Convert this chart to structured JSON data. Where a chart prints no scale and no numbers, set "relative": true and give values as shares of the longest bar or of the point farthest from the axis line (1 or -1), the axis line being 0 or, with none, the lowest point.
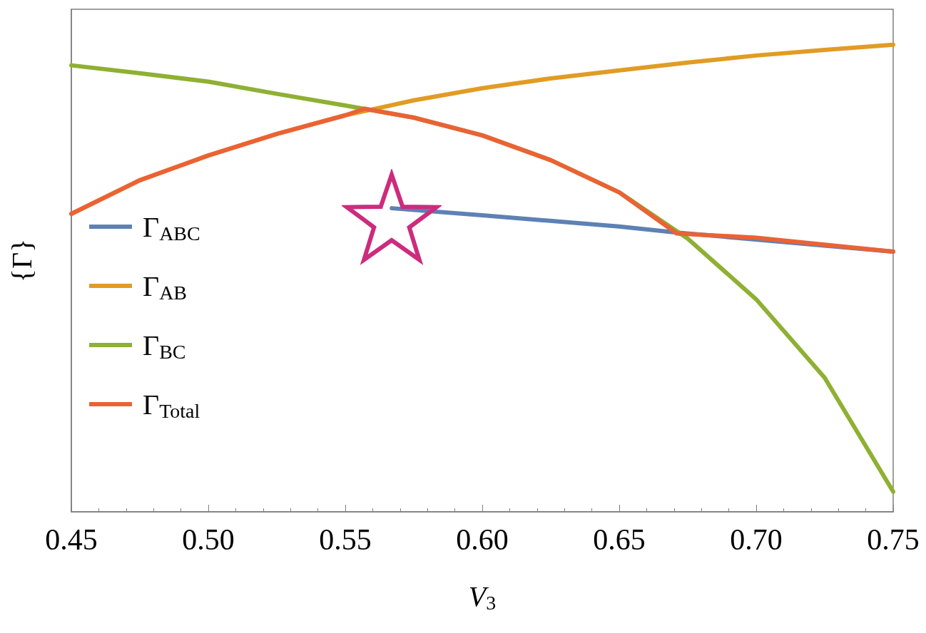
{
  "chart_data": {
    "type": "line",
    "xlabel": "V$_{3}$",
    "ylabel": "{Γ}",
    "relative": true,
    "xlim": [
      0.45,
      0.75
    ],
    "xticks": [
      {
        "value": 0.45,
        "label": "0.45"
      },
      {
        "value": 0.5,
        "label": "0.50"
      },
      {
        "value": 0.55,
        "label": "0.55"
      },
      {
        "value": 0.6,
        "label": "0.60"
      },
      {
        "value": 0.65,
        "label": "0.65"
      },
      {
        "value": 0.7,
        "label": "0.70"
      },
      {
        "value": 0.75,
        "label": "0.75"
      }
    ],
    "grid": false,
    "legend": "left",
    "marker": "none",
    "line_style": "solid",
    "series": [
      {
        "name": "Γ$_{ABC}$",
        "color": "#5e81b5",
        "x": [
          0.567,
          0.6,
          0.65,
          0.671,
          0.7,
          0.75
        ],
        "values": [
          0.65,
          0.635,
          0.611,
          0.598,
          null,
          0.557
        ]
      },
      {
        "name": "Γ$_{AB}$",
        "color": "#e19c24",
        "x": [
          0.45,
          0.475,
          0.5,
          0.525,
          0.55,
          0.575,
          0.6,
          0.625,
          0.65,
          0.675,
          0.7,
          0.725,
          0.75
        ],
        "values": [
          0.638,
          0.71,
          0.763,
          0.809,
          0.849,
          0.881,
          0.907,
          0.928,
          0.945,
          0.962,
          0.977,
          0.989,
          1
        ]
      },
      {
        "name": "Γ$_{BC}$",
        "color": "#8fb032",
        "x": [
          0.45,
          0.475,
          0.5,
          0.525,
          0.55,
          0.575,
          0.6,
          0.625,
          0.65,
          0.675,
          0.7,
          0.725,
          0.75
        ],
        "values": [
          0.956,
          0.939,
          0.921,
          0.895,
          0.87,
          0.844,
          0.806,
          0.753,
          0.684,
          0.585,
          0.455,
          0.287,
          0.043
        ]
      },
      {
        "name": "Γ$_{Total}$",
        "color": "#eb6235",
        "x": [
          0.45,
          0.475,
          0.5,
          0.525,
          0.55,
          0.557,
          0.575,
          0.6,
          0.625,
          0.65,
          0.671,
          0.7,
          0.75
        ],
        "values": [
          0.638,
          0.71,
          0.763,
          0.809,
          0.849,
          0.863,
          0.844,
          0.806,
          0.753,
          0.684,
          0.596,
          0.587,
          0.557
        ]
      }
    ]
  }
}
